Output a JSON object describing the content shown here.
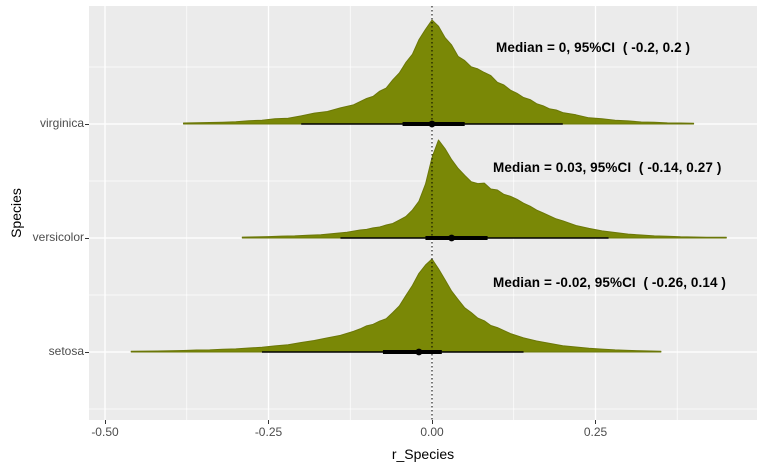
{
  "chart_data": {
    "type": "area",
    "subtype": "posterior-density-ridges",
    "title": "",
    "xlabel": "r_Species",
    "ylabel": "Species",
    "xlim": [
      -0.5245,
      0.497
    ],
    "x_ticks": [
      "-0.50",
      "-0.25",
      "0.00",
      "0.25"
    ],
    "x_tick_values": [
      -0.5,
      -0.25,
      0,
      0.25
    ],
    "x_minor_values": [
      -0.375,
      -0.125,
      0.125,
      0.375
    ],
    "y_categories_bottom_to_top": [
      "setosa",
      "versicolor",
      "virginica"
    ],
    "reference_line": 0,
    "grid": true,
    "legend": "none",
    "colors": {
      "panel_background": "#EBEBEB",
      "grid": "#FFFFFF",
      "density_fill": "#7A8806",
      "density_stroke": "#6B7708",
      "interval": "#000000",
      "tick_text": "#4D4D4D",
      "axis_title_text": "#000000",
      "annotation_text": "#000000"
    },
    "series": [
      {
        "name": "virginica",
        "median": 0,
        "ci_level": "95%",
        "ci_low": -0.2,
        "ci_high": 0.2,
        "thick_interval": [
          -0.045,
          0.05
        ],
        "annotation": "Median = 0, 95%CI  ( -0.2, 0.2 )",
        "density": [
          [
            -0.38,
            0.01
          ],
          [
            -0.35,
            0.013
          ],
          [
            -0.32,
            0.017
          ],
          [
            -0.3,
            0.022
          ],
          [
            -0.28,
            0.032
          ],
          [
            -0.26,
            0.036
          ],
          [
            -0.24,
            0.05
          ],
          [
            -0.22,
            0.055
          ],
          [
            -0.2,
            0.078
          ],
          [
            -0.18,
            0.105
          ],
          [
            -0.16,
            0.12
          ],
          [
            -0.14,
            0.155
          ],
          [
            -0.12,
            0.185
          ],
          [
            -0.1,
            0.245
          ],
          [
            -0.09,
            0.265
          ],
          [
            -0.08,
            0.315
          ],
          [
            -0.07,
            0.345
          ],
          [
            -0.06,
            0.425
          ],
          [
            -0.05,
            0.49
          ],
          [
            -0.04,
            0.59
          ],
          [
            -0.03,
            0.67
          ],
          [
            -0.02,
            0.81
          ],
          [
            -0.01,
            0.91
          ],
          [
            0,
            1.0
          ],
          [
            0.01,
            0.94
          ],
          [
            0.02,
            0.83
          ],
          [
            0.03,
            0.76
          ],
          [
            0.04,
            0.65
          ],
          [
            0.05,
            0.61
          ],
          [
            0.06,
            0.55
          ],
          [
            0.07,
            0.53
          ],
          [
            0.08,
            0.495
          ],
          [
            0.09,
            0.465
          ],
          [
            0.1,
            0.4
          ],
          [
            0.11,
            0.375
          ],
          [
            0.12,
            0.325
          ],
          [
            0.13,
            0.295
          ],
          [
            0.14,
            0.255
          ],
          [
            0.15,
            0.235
          ],
          [
            0.16,
            0.195
          ],
          [
            0.17,
            0.175
          ],
          [
            0.18,
            0.145
          ],
          [
            0.19,
            0.135
          ],
          [
            0.2,
            0.11
          ],
          [
            0.22,
            0.088
          ],
          [
            0.24,
            0.06
          ],
          [
            0.26,
            0.05
          ],
          [
            0.28,
            0.036
          ],
          [
            0.3,
            0.03
          ],
          [
            0.32,
            0.019
          ],
          [
            0.34,
            0.016
          ],
          [
            0.36,
            0.011
          ],
          [
            0.38,
            0.01
          ],
          [
            0.4,
            0.008
          ]
        ]
      },
      {
        "name": "versicolor",
        "median": 0.03,
        "ci_level": "95%",
        "ci_low": -0.14,
        "ci_high": 0.27,
        "thick_interval": [
          -0.01,
          0.085
        ],
        "annotation": "Median = 0.03, 95%CI  ( -0.14, 0.27 )",
        "density": [
          [
            -0.29,
            0.009
          ],
          [
            -0.27,
            0.011
          ],
          [
            -0.25,
            0.014
          ],
          [
            -0.23,
            0.019
          ],
          [
            -0.21,
            0.021
          ],
          [
            -0.19,
            0.029
          ],
          [
            -0.17,
            0.034
          ],
          [
            -0.15,
            0.046
          ],
          [
            -0.13,
            0.058
          ],
          [
            -0.11,
            0.082
          ],
          [
            -0.1,
            0.088
          ],
          [
            -0.09,
            0.103
          ],
          [
            -0.08,
            0.112
          ],
          [
            -0.07,
            0.133
          ],
          [
            -0.06,
            0.148
          ],
          [
            -0.05,
            0.183
          ],
          [
            -0.04,
            0.218
          ],
          [
            -0.03,
            0.285
          ],
          [
            -0.02,
            0.375
          ],
          [
            -0.01,
            0.55
          ],
          [
            0,
            0.82
          ],
          [
            0.01,
            1.0
          ],
          [
            0.02,
            0.91
          ],
          [
            0.03,
            0.8
          ],
          [
            0.04,
            0.71
          ],
          [
            0.05,
            0.64
          ],
          [
            0.06,
            0.575
          ],
          [
            0.07,
            0.555
          ],
          [
            0.08,
            0.56
          ],
          [
            0.09,
            0.5
          ],
          [
            0.1,
            0.49
          ],
          [
            0.11,
            0.445
          ],
          [
            0.12,
            0.425
          ],
          [
            0.13,
            0.395
          ],
          [
            0.14,
            0.355
          ],
          [
            0.15,
            0.325
          ],
          [
            0.16,
            0.285
          ],
          [
            0.17,
            0.255
          ],
          [
            0.18,
            0.225
          ],
          [
            0.19,
            0.195
          ],
          [
            0.2,
            0.175
          ],
          [
            0.22,
            0.128
          ],
          [
            0.24,
            0.098
          ],
          [
            0.26,
            0.072
          ],
          [
            0.28,
            0.056
          ],
          [
            0.3,
            0.04
          ],
          [
            0.32,
            0.031
          ],
          [
            0.34,
            0.021
          ],
          [
            0.36,
            0.017
          ],
          [
            0.38,
            0.012
          ],
          [
            0.4,
            0.01
          ],
          [
            0.42,
            0.008
          ],
          [
            0.45,
            0.007
          ]
        ]
      },
      {
        "name": "setosa",
        "median": -0.02,
        "ci_level": "95%",
        "ci_low": -0.26,
        "ci_high": 0.14,
        "thick_interval": [
          -0.075,
          0.015
        ],
        "annotation": "Median = -0.02, 95%CI  ( -0.26, 0.14 )",
        "density": [
          [
            -0.46,
            0.008
          ],
          [
            -0.44,
            0.01
          ],
          [
            -0.42,
            0.011
          ],
          [
            -0.4,
            0.013
          ],
          [
            -0.38,
            0.016
          ],
          [
            -0.36,
            0.021
          ],
          [
            -0.34,
            0.023
          ],
          [
            -0.32,
            0.029
          ],
          [
            -0.3,
            0.033
          ],
          [
            -0.28,
            0.043
          ],
          [
            -0.26,
            0.051
          ],
          [
            -0.24,
            0.066
          ],
          [
            -0.22,
            0.079
          ],
          [
            -0.2,
            0.102
          ],
          [
            -0.18,
            0.124
          ],
          [
            -0.16,
            0.152
          ],
          [
            -0.14,
            0.178
          ],
          [
            -0.12,
            0.222
          ],
          [
            -0.11,
            0.248
          ],
          [
            -0.1,
            0.282
          ],
          [
            -0.09,
            0.298
          ],
          [
            -0.08,
            0.332
          ],
          [
            -0.07,
            0.358
          ],
          [
            -0.06,
            0.425
          ],
          [
            -0.05,
            0.495
          ],
          [
            -0.04,
            0.605
          ],
          [
            -0.03,
            0.715
          ],
          [
            -0.02,
            0.845
          ],
          [
            -0.01,
            0.935
          ],
          [
            0,
            1.0
          ],
          [
            0.01,
            0.895
          ],
          [
            0.02,
            0.775
          ],
          [
            0.03,
            0.655
          ],
          [
            0.04,
            0.565
          ],
          [
            0.05,
            0.475
          ],
          [
            0.06,
            0.425
          ],
          [
            0.07,
            0.365
          ],
          [
            0.08,
            0.335
          ],
          [
            0.09,
            0.285
          ],
          [
            0.1,
            0.262
          ],
          [
            0.12,
            0.198
          ],
          [
            0.14,
            0.152
          ],
          [
            0.16,
            0.118
          ],
          [
            0.18,
            0.092
          ],
          [
            0.2,
            0.068
          ],
          [
            0.22,
            0.054
          ],
          [
            0.24,
            0.041
          ],
          [
            0.26,
            0.031
          ],
          [
            0.28,
            0.023
          ],
          [
            0.3,
            0.017
          ],
          [
            0.32,
            0.013
          ],
          [
            0.35,
            0.009
          ]
        ]
      }
    ]
  }
}
